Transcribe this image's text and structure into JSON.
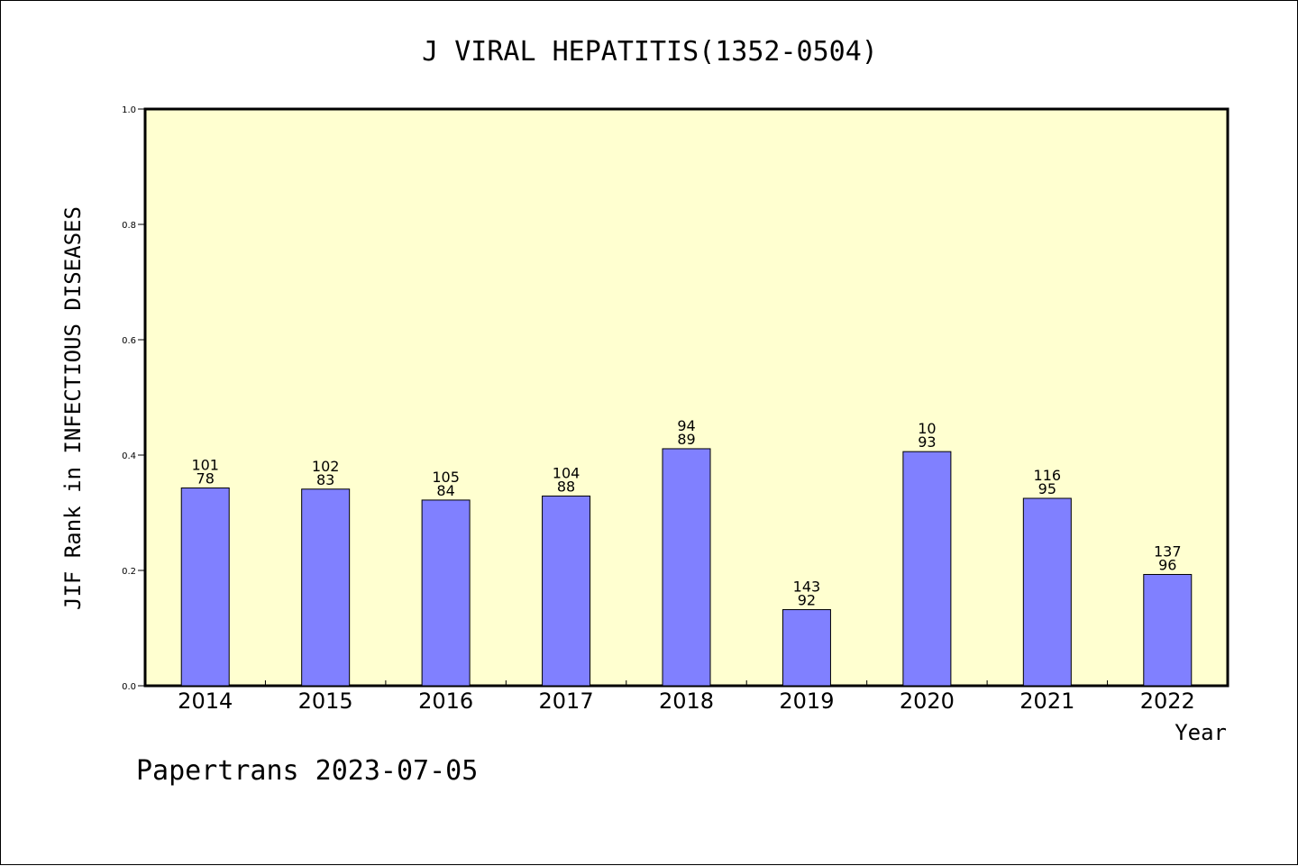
{
  "chart_data": {
    "type": "bar",
    "title": "J VIRAL HEPATITIS(1352-0504)",
    "xlabel": "Year",
    "ylabel": "JIF Rank in INFECTIOUS DISEASES",
    "categories": [
      "2014",
      "2015",
      "2016",
      "2017",
      "2018",
      "2019",
      "2020",
      "2021",
      "2022"
    ],
    "values": [
      0.343,
      0.341,
      0.322,
      0.329,
      0.411,
      0.132,
      0.406,
      0.325,
      0.193
    ],
    "bar_labels": [
      [
        "101",
        "78"
      ],
      [
        "102",
        "83"
      ],
      [
        "105",
        "84"
      ],
      [
        "104",
        "88"
      ],
      [
        "94",
        "89"
      ],
      [
        "143",
        "92"
      ],
      [
        "10",
        "93"
      ],
      [
        "116",
        "95"
      ],
      [
        "137",
        "96"
      ]
    ],
    "ylim": [
      0,
      1.0
    ],
    "yticks": [
      "0.0",
      "0.2",
      "0.4",
      "0.6",
      "0.8",
      "1.0"
    ],
    "grid": false,
    "colors": {
      "bar": "#8080ff",
      "plot_background": "#ffffd0",
      "axis": "#000000"
    }
  },
  "footer": {
    "credit": "Papertrans 2023-07-05"
  }
}
